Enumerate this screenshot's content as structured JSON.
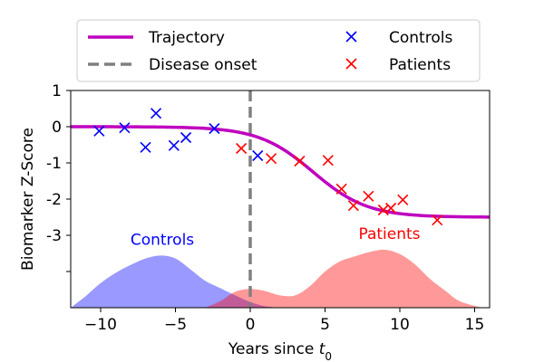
{
  "chart_data": {
    "type": "line",
    "xlabel": "Years since t0",
    "xlabel_main": "Years since ",
    "xlabel_var": "t",
    "xlabel_sub": "0",
    "ylabel": "Biomarker Z-Score",
    "xlim": [
      -12,
      16
    ],
    "ylim": [
      -5,
      1
    ],
    "xticks": [
      -10,
      -5,
      0,
      5,
      10,
      15
    ],
    "yticks": [
      1,
      0,
      -1,
      -2,
      -3
    ],
    "xtick_labels": [
      "−10",
      "−5",
      "0",
      "5",
      "10",
      "15"
    ],
    "ytick_labels": [
      "1",
      "0",
      "-1",
      "-2",
      "-3"
    ],
    "unlabeled_yticks": [
      -4
    ],
    "grid": false,
    "legend": {
      "position": "top",
      "ncol": 2,
      "entries": [
        {
          "label": "Trajectory",
          "type": "line",
          "color": "#bf00bf"
        },
        {
          "label": "Controls",
          "type": "marker",
          "color": "#0000ff"
        },
        {
          "label": "Disease onset",
          "type": "dashed",
          "color": "#808080"
        },
        {
          "label": "Patients",
          "type": "marker",
          "color": "#ff0000"
        }
      ]
    },
    "trajectory": {
      "name": "Trajectory",
      "color": "#bf00bf",
      "curve": "sigmoid",
      "upper": 0.0,
      "lower": -2.5,
      "midpoint": 4.2,
      "rate": 0.55
    },
    "onset": {
      "name": "Disease onset",
      "x": 0,
      "color": "#808080"
    },
    "series": [
      {
        "name": "Controls",
        "color": "#0000ff",
        "x": [
          -10.1,
          -8.4,
          -7.0,
          -6.3,
          -5.1,
          -4.3,
          -2.4,
          0.5
        ],
        "y": [
          -0.12,
          -0.03,
          -0.57,
          0.37,
          -0.52,
          -0.3,
          -0.05,
          -0.8
        ]
      },
      {
        "name": "Patients",
        "color": "#ff0000",
        "x": [
          -0.6,
          1.4,
          3.3,
          5.2,
          6.1,
          6.9,
          7.9,
          8.9,
          9.4,
          10.2,
          12.5
        ],
        "y": [
          -0.6,
          -0.88,
          -0.95,
          -0.93,
          -1.72,
          -2.18,
          -1.92,
          -2.3,
          -2.25,
          -2.02,
          -2.58
        ]
      }
    ],
    "distributions": [
      {
        "name": "Controls",
        "color": "#0000ff",
        "label": "Controls",
        "x": [
          -12,
          -11,
          -10,
          -9,
          -8,
          -7,
          -6,
          -5,
          -4,
          -3,
          -2,
          -1,
          0,
          1,
          2
        ],
        "density": [
          0.0,
          0.16,
          0.34,
          0.48,
          0.59,
          0.68,
          0.72,
          0.68,
          0.53,
          0.37,
          0.27,
          0.17,
          0.08,
          0.02,
          0.0
        ]
      },
      {
        "name": "Patients",
        "color": "#ff0000",
        "label": "Patients",
        "x": [
          -3,
          -2,
          -1,
          0,
          1,
          2,
          3,
          4,
          5,
          6,
          7,
          8,
          9,
          10,
          11,
          12,
          13,
          14,
          15.5
        ],
        "density": [
          0.0,
          0.09,
          0.22,
          0.26,
          0.23,
          0.17,
          0.17,
          0.3,
          0.5,
          0.64,
          0.71,
          0.77,
          0.8,
          0.74,
          0.6,
          0.4,
          0.24,
          0.09,
          0.0
        ]
      }
    ]
  }
}
